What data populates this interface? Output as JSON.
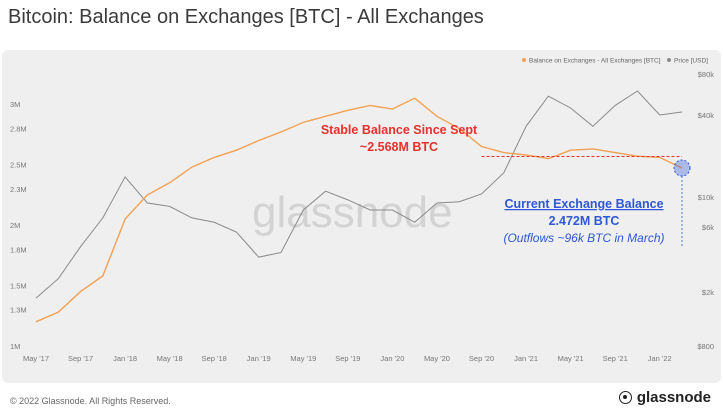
{
  "title": "Bitcoin: Balance on Exchanges [BTC] - All Exchanges",
  "footer": {
    "copyright": "© 2022 Glassnode. All Rights Reserved.",
    "logo_text": "glassnode"
  },
  "watermark": "glassnode",
  "colors": {
    "balance": "#f2a154",
    "price": "#8a8a8a",
    "red_annotation": "#e5322d",
    "blue_annotation": "#2f57d6",
    "panel": "#efefef"
  },
  "chart_data": {
    "type": "line",
    "x": [
      "May '17",
      "Jul '17",
      "Sep '17",
      "Nov '17",
      "Jan '18",
      "Mar '18",
      "May '18",
      "Jul '18",
      "Sep '18",
      "Nov '18",
      "Jan '19",
      "Mar '19",
      "May '19",
      "Jul '19",
      "Sep '19",
      "Nov '19",
      "Jan '20",
      "Mar '20",
      "May '20",
      "Jul '20",
      "Sep '20",
      "Nov '20",
      "Jan '21",
      "Mar '21",
      "May '21",
      "Jul '21",
      "Sep '21",
      "Nov '21",
      "Jan '22",
      "Mar '22"
    ],
    "series": [
      {
        "name": "Balance on Exchanges - All Exchanges [BTC]",
        "axis": "left",
        "values": [
          1.2,
          1.28,
          1.45,
          1.58,
          2.05,
          2.25,
          2.35,
          2.48,
          2.56,
          2.62,
          2.7,
          2.77,
          2.85,
          2.9,
          2.95,
          2.99,
          2.96,
          3.05,
          2.9,
          2.8,
          2.65,
          2.6,
          2.58,
          2.55,
          2.62,
          2.63,
          2.6,
          2.57,
          2.56,
          2.472
        ]
      },
      {
        "name": "Price [USD]",
        "axis": "right",
        "values": [
          1800,
          2500,
          4300,
          7000,
          14000,
          9000,
          8500,
          7000,
          6500,
          5500,
          3600,
          3900,
          8000,
          11000,
          9500,
          8000,
          8000,
          6500,
          9000,
          9200,
          10500,
          15000,
          33000,
          55000,
          45000,
          33000,
          47000,
          60000,
          40000,
          42000
        ]
      }
    ],
    "y_left": {
      "ticks": [
        "1M",
        "1.3M",
        "1.5M",
        "1.8M",
        "2M",
        "2.3M",
        "2.5M",
        "2.8M",
        "3M"
      ],
      "ylim": [
        1.0,
        3.25
      ]
    },
    "y_right": {
      "ticks": [
        "$800",
        "$2k",
        "$6k",
        "$10k",
        "$40k",
        "$80k"
      ],
      "scale": "log"
    },
    "x_ticks": [
      "May '17",
      "Sep '17",
      "Jan '18",
      "May '18",
      "Sep '18",
      "Jan '19",
      "May '19",
      "Sep '19",
      "Jan '20",
      "May '20",
      "Sep '20",
      "Jan '21",
      "May '21",
      "Sep '21",
      "Jan '22"
    ],
    "legend": {
      "placement": "top-right",
      "balance_label": "Balance on Exchanges - All Exchanges [BTC]",
      "price_label": "Price [USD]"
    },
    "annotations": {
      "stable_title": "Stable Balance Since Sept",
      "stable_value": "~2.568M BTC",
      "current_title": "Current Exchange Balance",
      "current_value": "2.472M BTC",
      "current_note": "(Outflows ~96k BTC in March)"
    }
  }
}
